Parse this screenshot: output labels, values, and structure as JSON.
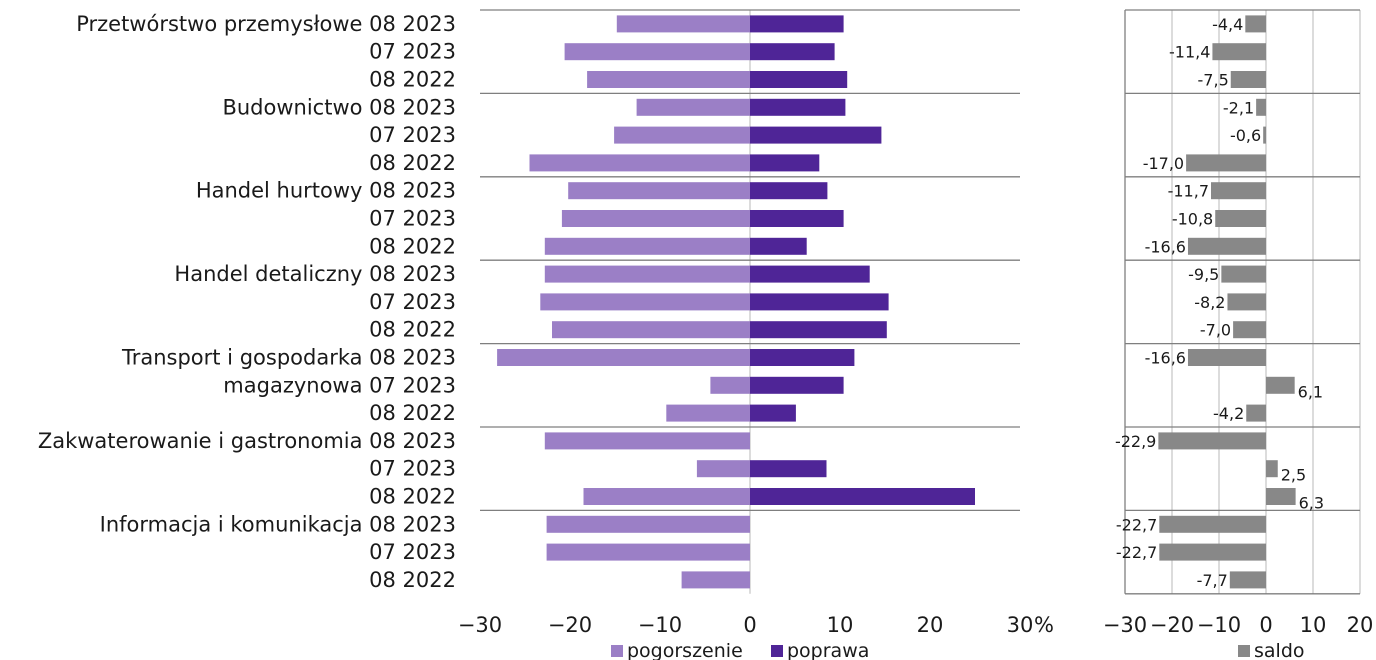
{
  "chart_data": [
    {
      "type": "bar",
      "orientation": "horizontal",
      "stacked": false,
      "categories": [
        "Przetwórstwo przemysłowe 08 2023",
        "07 2023",
        "08 2022",
        "Budownictwo 08 2023",
        "07 2023",
        "08 2022",
        "Handel hurtowy 08 2023",
        "07 2023",
        "08 2022",
        "Handel detaliczny 08 2023",
        "07 2023",
        "08 2022",
        "Transport i gospodarka 08 2023",
        "magazynowa 07 2023",
        "08 2022",
        "Zakwaterowanie i gastronomia 08 2023",
        "07 2023",
        "08 2022",
        "Informacja i komunikacja 08 2023",
        "07 2023",
        "08 2022"
      ],
      "series": [
        {
          "name": "pogorszenie",
          "color": "#9b7fc6",
          "values": [
            -14.8,
            -20.6,
            -18.1,
            -12.6,
            -15.1,
            -24.5,
            -20.2,
            -20.9,
            -22.8,
            -22.8,
            -23.3,
            -22.0,
            -28.1,
            -4.4,
            -9.3,
            -22.8,
            -5.9,
            -18.5,
            -22.6,
            -22.6,
            -7.6
          ]
        },
        {
          "name": "poprawa",
          "color": "#4f2597",
          "values": [
            10.4,
            9.4,
            10.8,
            10.6,
            14.6,
            7.7,
            8.6,
            10.4,
            6.3,
            13.3,
            15.4,
            15.2,
            11.6,
            10.4,
            5.1,
            0,
            8.5,
            25.0,
            0,
            0,
            0
          ]
        }
      ],
      "xlim": [
        -30,
        30
      ],
      "ticks": [
        "-30",
        "-20",
        "-10",
        "0",
        "10",
        "20",
        "30"
      ],
      "unit_label": "%",
      "grid": true,
      "legend_position": "bottom"
    },
    {
      "type": "bar",
      "orientation": "horizontal",
      "series": [
        {
          "name": "saldo",
          "color": "#888888",
          "values": [
            -4.4,
            -11.4,
            -7.5,
            -2.1,
            -0.6,
            -17.0,
            -11.7,
            -10.8,
            -16.6,
            -9.5,
            -8.2,
            -7.0,
            -16.6,
            6.1,
            -4.2,
            -22.9,
            2.5,
            6.3,
            -22.7,
            -22.7,
            -7.7
          ],
          "labels": [
            "-4,4",
            "-11,4",
            "-7,5",
            "-2,1",
            "-0,6",
            "-17,0",
            "-11,7",
            "-10,8",
            "-16,6",
            "-9,5",
            "-8,2",
            "-7,0",
            "-16,6",
            "6,1",
            "-4,2",
            "-22,9",
            "2,5",
            "6,3",
            "-22,7",
            "-22,7",
            "-7,7"
          ]
        }
      ],
      "xlim": [
        -30,
        20
      ],
      "ticks": [
        "-30",
        "-20",
        "-10",
        "0",
        "10",
        "20"
      ],
      "grid": true,
      "legend_position": "bottom"
    }
  ],
  "colors": {
    "pogorszenie": "#9b7fc6",
    "poprawa": "#4f2597",
    "saldo": "#888888",
    "axis": "#7f7f7f",
    "grid": "#d0d0d0"
  }
}
